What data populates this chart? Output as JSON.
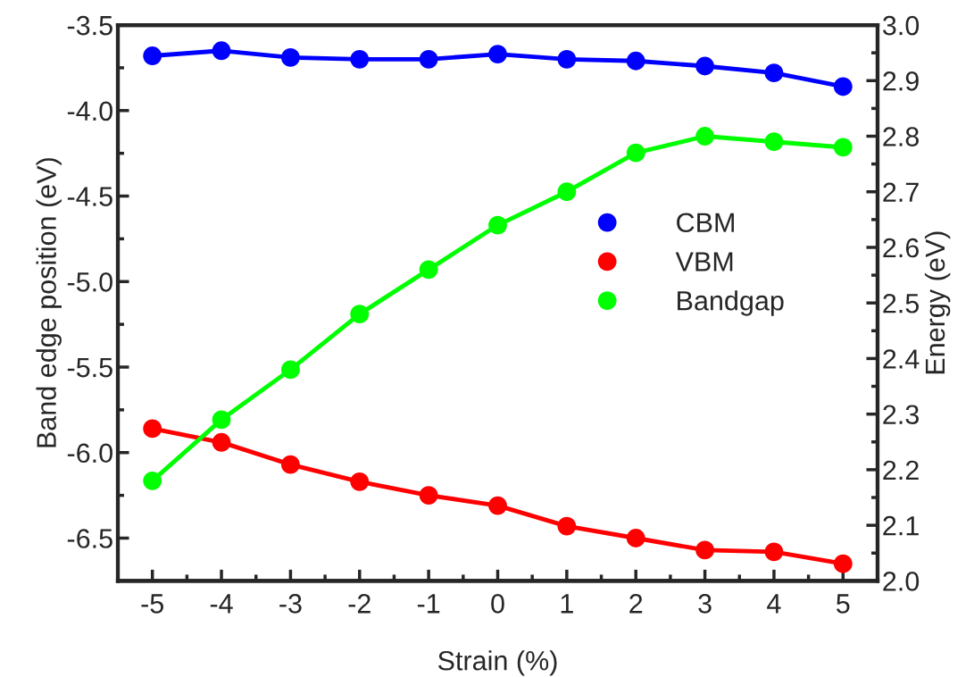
{
  "chart_data": {
    "type": "line",
    "xlabel": "Strain (%)",
    "ylabel": "Band edge position (eV)",
    "y2label": "Energy (eV)",
    "x": [
      -5,
      -4,
      -3,
      -2,
      -1,
      0,
      1,
      2,
      3,
      4,
      5
    ],
    "series": [
      {
        "name": "CBM",
        "color": "#0000ff",
        "values": [
          -3.68,
          -3.65,
          -3.69,
          -3.7,
          -3.7,
          -3.67,
          -3.7,
          -3.71,
          -3.74,
          -3.78,
          -3.86
        ]
      },
      {
        "name": "VBM",
        "color": "#ff0000",
        "values": [
          -5.86,
          -5.94,
          -6.07,
          -6.17,
          -6.25,
          -6.31,
          -6.43,
          -6.5,
          -6.57,
          -6.58,
          -6.65
        ]
      },
      {
        "name": "Bandgap",
        "color": "#00ff00",
        "axis": "y2",
        "values": [
          2.18,
          2.29,
          2.38,
          2.48,
          2.56,
          2.64,
          2.7,
          2.77,
          2.8,
          2.79,
          2.78
        ]
      }
    ],
    "xlim": [
      -5.5,
      5.5
    ],
    "xticks": [
      -5,
      -4,
      -3,
      -2,
      -1,
      0,
      1,
      2,
      3,
      4,
      5
    ],
    "ylim": [
      -6.75,
      -3.5
    ],
    "yticks": [
      -6.5,
      {
        "value": -6,
        "label": "-6.0"
      },
      -5.5,
      {
        "value": -5,
        "label": "-5.0"
      },
      -4.5,
      {
        "value": -4,
        "label": "-4.0"
      },
      -3.5
    ],
    "y2lim": [
      2.0,
      3.0
    ],
    "y2ticks": [
      {
        "value": 2,
        "label": "2.0"
      },
      2.1,
      2.2,
      2.3,
      2.4,
      2.5,
      2.6,
      2.7,
      2.8,
      2.9,
      {
        "value": 3,
        "label": "3.0"
      }
    ],
    "marker": "circle",
    "line_style": "solid",
    "legend": "right",
    "grid": false
  }
}
